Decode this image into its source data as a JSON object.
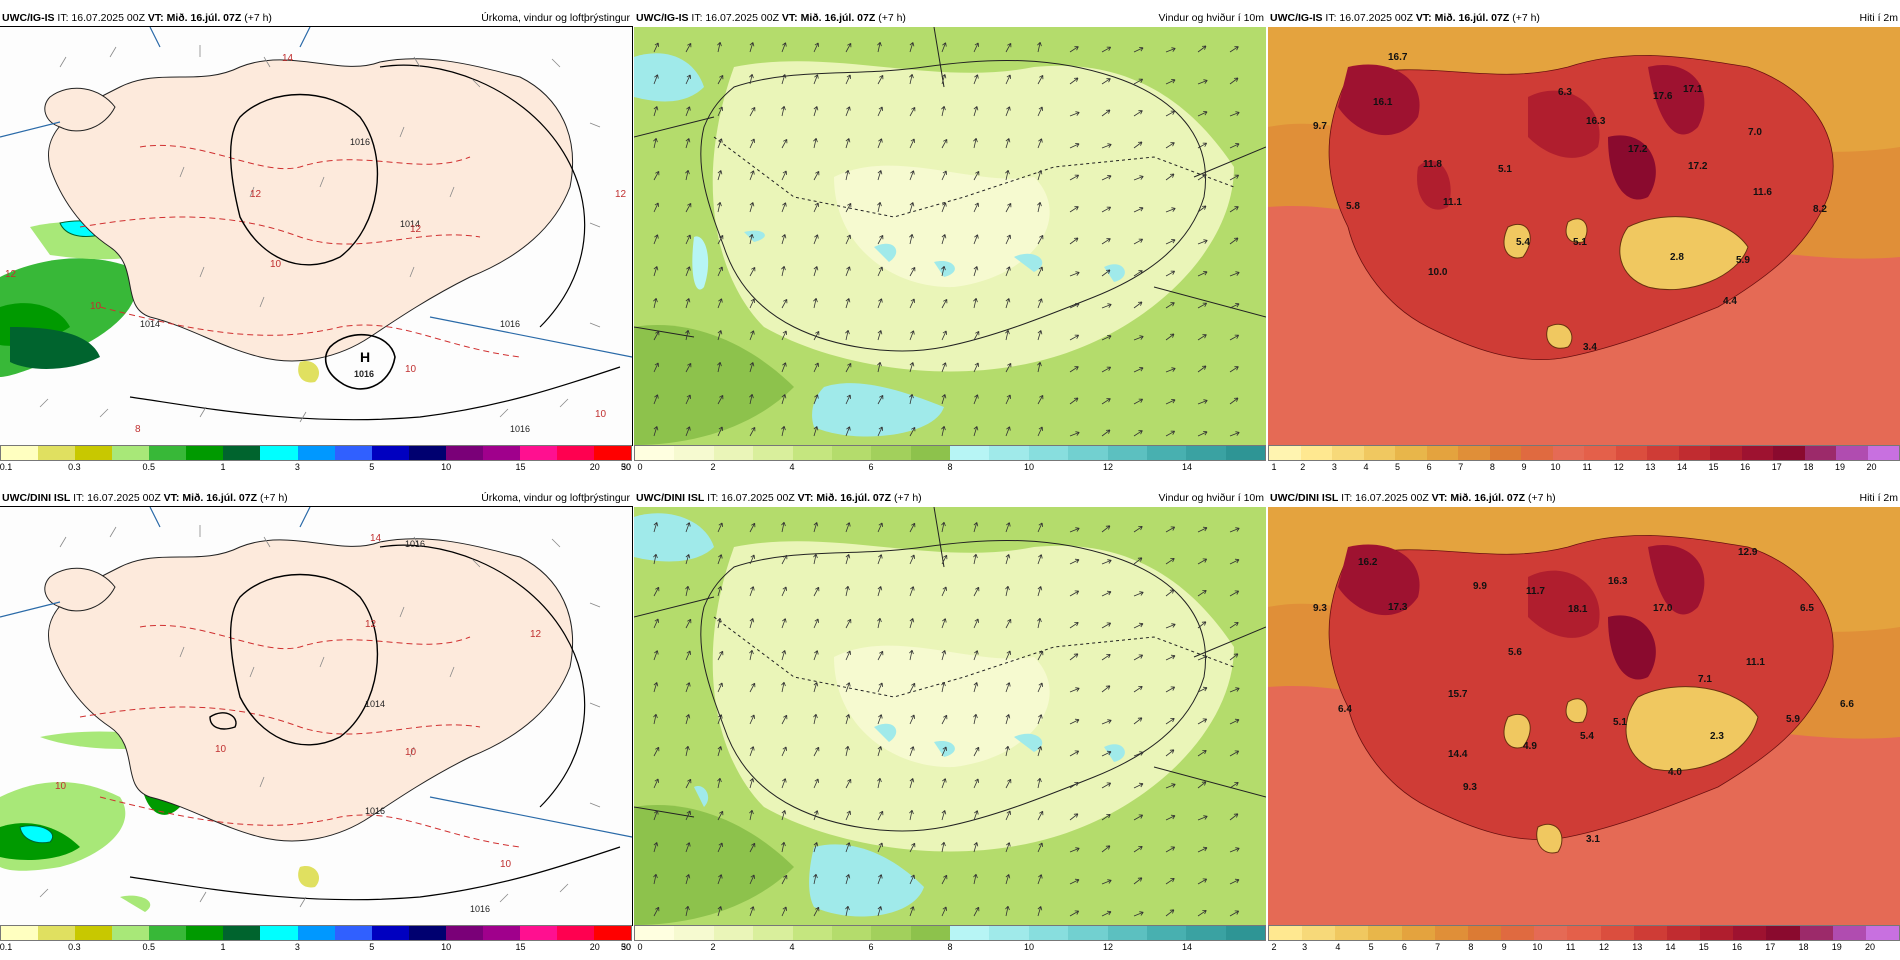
{
  "panels": [
    {
      "model": "UWC/IG-IS",
      "it": "IT: 16.07.2025 00Z",
      "vt_label": "VT:",
      "vt": "Mið. 16.júl. 07Z",
      "lead": "(+7 h)",
      "title": "Úrkoma, vindur og loftþrýstingur",
      "type": "precip",
      "pressure_labels": [
        "1016",
        "1016",
        "1014",
        "1014",
        "1016"
      ],
      "temp_contour_labels": [
        "14",
        "12",
        "12",
        "12",
        "12",
        "10",
        "10",
        "8",
        "10",
        "10"
      ],
      "high_label": "H",
      "high_value": "1016"
    },
    {
      "model": "UWC/IG-IS",
      "it": "IT: 16.07.2025 00Z",
      "vt_label": "VT:",
      "vt": "Mið. 16.júl. 07Z",
      "lead": "(+7 h)",
      "title": "Vindur og hviður í 10m",
      "type": "wind"
    },
    {
      "model": "UWC/IG-IS",
      "it": "IT: 16.07.2025 00Z",
      "vt_label": "VT:",
      "vt": "Mið. 16.júl. 07Z",
      "lead": "(+7 h)",
      "title": "Hiti í 2m",
      "type": "temp",
      "temp_labels": [
        "16.7",
        "16.1",
        "9.7",
        "11.8",
        "5.8",
        "11.1",
        "10.0",
        "5.1",
        "6.3",
        "16.3",
        "17.2",
        "17.6",
        "17.1",
        "17.2",
        "7.0",
        "11.6",
        "8.2",
        "5.4",
        "5.1",
        "2.8",
        "5.9",
        "4.4",
        "3.4"
      ]
    },
    {
      "model": "UWC/DINI ISL",
      "it": "IT: 16.07.2025 00Z",
      "vt_label": "VT:",
      "vt": "Mið. 16.júl. 07Z",
      "lead": "(+7 h)",
      "title": "Úrkoma, vindur og loftþrýstingur",
      "type": "precip",
      "pressure_labels": [
        "1016",
        "1014",
        "1016",
        "1016"
      ],
      "temp_contour_labels": [
        "14",
        "12",
        "12",
        "10",
        "10",
        "10",
        "10"
      ]
    },
    {
      "model": "UWC/DINI ISL",
      "it": "IT: 16.07.2025 00Z",
      "vt_label": "VT:",
      "vt": "Mið. 16.júl. 07Z",
      "lead": "(+7 h)",
      "title": "Vindur og hviður í 10m",
      "type": "wind"
    },
    {
      "model": "UWC/DINI ISL",
      "it": "IT: 16.07.2025 00Z",
      "vt_label": "VT:",
      "vt": "Mið. 16.júl. 07Z",
      "lead": "(+7 h)",
      "title": "Hiti í 2m",
      "type": "temp",
      "temp_labels": [
        "16.2",
        "9.3",
        "17.3",
        "9.9",
        "11.7",
        "18.1",
        "16.3",
        "17.0",
        "12.9",
        "6.5",
        "5.6",
        "15.7",
        "6.4",
        "7.1",
        "11.1",
        "4.9",
        "5.4",
        "5.1",
        "2.3",
        "5.9",
        "6.6",
        "14.4",
        "4.0",
        "9.3",
        "3.1"
      ]
    }
  ],
  "colorbars": {
    "precip": {
      "colors": [
        "#ffffc0",
        "#e0e060",
        "#c8c800",
        "#a8e878",
        "#38b838",
        "#009a00",
        "#00642e",
        "#00ffff",
        "#0098ff",
        "#3060ff",
        "#0000c0",
        "#000070",
        "#7a0078",
        "#a0008c",
        "#ff1090",
        "#ff0050",
        "#ff0000"
      ],
      "ticks": [
        "0.1",
        "0.3",
        "0.5",
        "1",
        "3",
        "5",
        "10",
        "15",
        "20",
        "30",
        "50"
      ]
    },
    "wind": {
      "colors": [
        "#ffffe0",
        "#f6fad0",
        "#eaf5b8",
        "#d9ef9c",
        "#c5e67f",
        "#b4dc6c",
        "#a2d05c",
        "#8dc24c",
        "#b7f5f5",
        "#a0eaea",
        "#88dede",
        "#72d0d0",
        "#5cc0c0",
        "#48b0b0",
        "#3aa2a2",
        "#2e9595"
      ],
      "ticks": [
        "0",
        "2",
        "4",
        "6",
        "8",
        "10",
        "12",
        "14"
      ]
    },
    "temp_top": {
      "colors": [
        "#fff4b0",
        "#ffe890",
        "#f7d979",
        "#f0c860",
        "#e8b64a",
        "#e4a33e",
        "#e08f38",
        "#dc7b34",
        "#e06a40",
        "#e56a55",
        "#e4604a",
        "#db4e3e",
        "#cf3c36",
        "#c12c30",
        "#b01e2e",
        "#9e1230",
        "#8a0a2e",
        "#9c2a6a",
        "#b04cb0",
        "#c870e0"
      ],
      "ticks": [
        "1",
        "2",
        "3",
        "4",
        "5",
        "6",
        "7",
        "8",
        "9",
        "10",
        "11",
        "12",
        "13",
        "14",
        "15",
        "16",
        "17",
        "18",
        "19",
        "20"
      ]
    },
    "temp_bottom": {
      "colors": [
        "#ffe890",
        "#f7d979",
        "#f0c860",
        "#e8b64a",
        "#e4a33e",
        "#e08f38",
        "#dc7b34",
        "#e06a40",
        "#e56a55",
        "#e4604a",
        "#db4e3e",
        "#cf3c36",
        "#c12c30",
        "#b01e2e",
        "#9e1230",
        "#8a0a2e",
        "#9c2a6a",
        "#b04cb0",
        "#c870e0"
      ],
      "ticks": [
        "2",
        "3",
        "4",
        "5",
        "6",
        "7",
        "8",
        "9",
        "10",
        "11",
        "12",
        "13",
        "14",
        "15",
        "16",
        "17",
        "18",
        "19",
        "20"
      ]
    }
  }
}
